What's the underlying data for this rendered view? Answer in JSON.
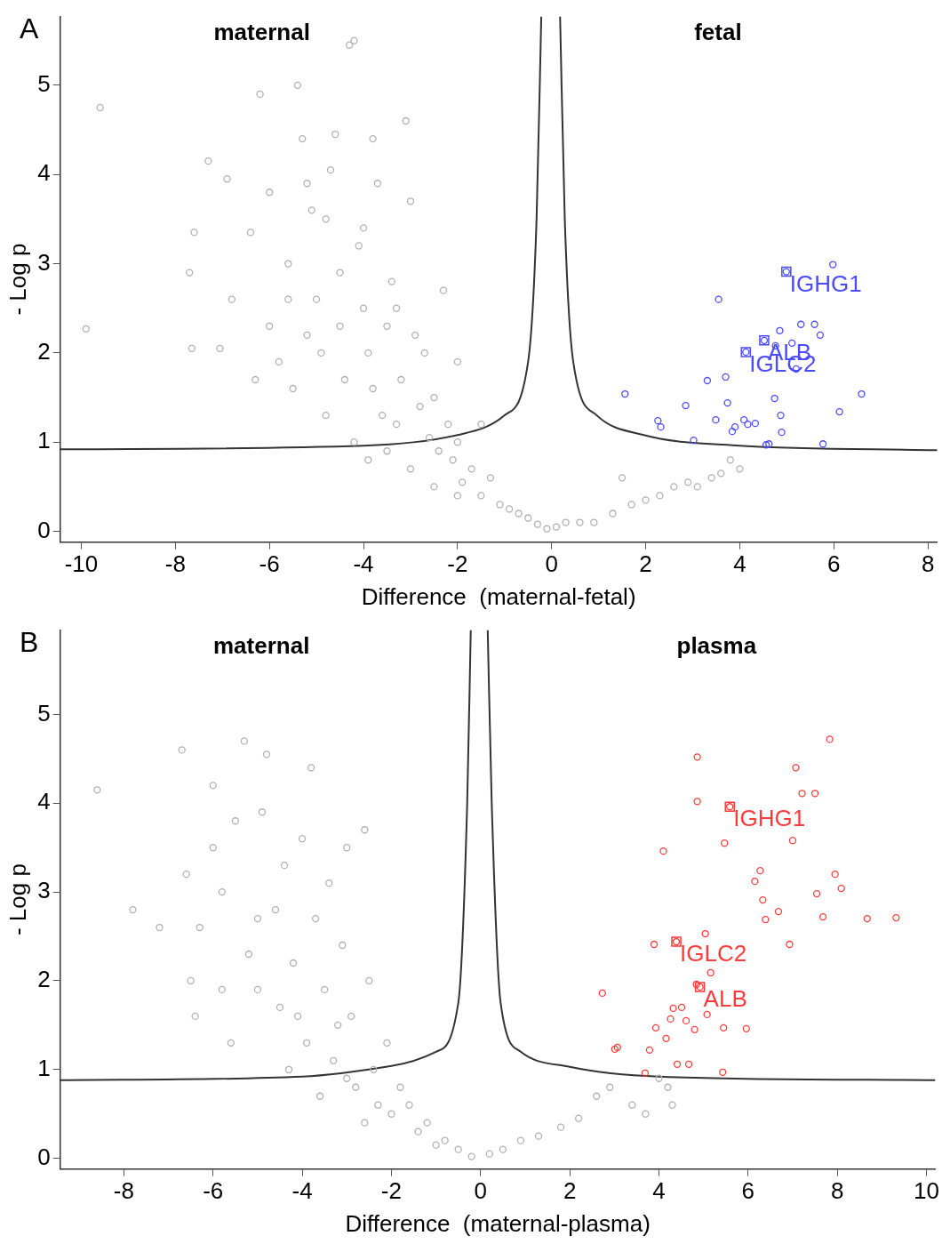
{
  "chart_data": [
    {
      "type": "scatter",
      "title": "A",
      "xlabel": "Difference  (maternal-fetal)",
      "ylabel": "- Log p",
      "xlim": [
        -10.45,
        8.2
      ],
      "ylim": [
        -0.12,
        5.77
      ],
      "xticks": [
        -10,
        -8,
        -6,
        -4,
        -2,
        0,
        2,
        4,
        6,
        8
      ],
      "yticks": [
        0,
        1,
        2,
        3,
        4,
        5
      ],
      "grid": false,
      "legend": false,
      "annotations": [
        "maternal",
        "fetal",
        {
          "text": "IGHG1",
          "x": 4.99,
          "y": 2.91
        },
        {
          "text": "ALB",
          "x": 4.52,
          "y": 2.14
        },
        {
          "text": "IGLC2",
          "x": 4.13,
          "y": 2.01
        }
      ],
      "series": [
        {
          "type": "scatter",
          "marker": "circle",
          "color": "#b0b0b0",
          "x": [
            -9.6,
            -9.9,
            -7.7,
            -7.6,
            -7.65,
            -7.3,
            -7.05,
            -6.9,
            -6.8,
            -6.4,
            -6.2,
            -6.0,
            -6.0,
            -5.8,
            -5.6,
            -5.6,
            -5.4,
            -5.3,
            -5.2,
            -5.1,
            -5.0,
            -4.9,
            -4.8,
            -4.7,
            -4.6,
            -4.5,
            -4.4,
            -4.3,
            -4.2,
            -4.1,
            -4.0,
            -3.9,
            -3.8,
            -3.8,
            -3.7,
            -3.6,
            -3.5,
            -3.4,
            -3.3,
            -3.2,
            -3.1,
            -3.0,
            -2.9,
            -2.8,
            -2.7,
            -2.6,
            -2.5,
            -2.4,
            -2.3,
            -2.2,
            -2.1,
            -2.0,
            -1.9,
            -1.7,
            -1.5,
            -1.3,
            -1.1,
            -0.9,
            -0.7,
            -0.5,
            -0.3,
            -0.1,
            0.1,
            0.3,
            0.6,
            0.9,
            1.3,
            1.5,
            1.7,
            2.0,
            2.3,
            2.6,
            2.9,
            3.1,
            3.4,
            3.6,
            3.8,
            4.0,
            -4.8,
            -4.2,
            -3.9,
            -3.5,
            -3.0,
            -2.5,
            -2.0,
            -5.5,
            -6.3,
            -4.5,
            -3.3,
            -2.0,
            -1.5,
            -4.0,
            -5.2
          ],
          "values": [
            4.75,
            2.27,
            2.9,
            3.35,
            2.05,
            4.15,
            2.05,
            3.95,
            2.6,
            3.35,
            4.9,
            2.3,
            3.8,
            1.9,
            3.0,
            2.6,
            5.0,
            4.4,
            2.2,
            3.6,
            2.6,
            2.0,
            3.5,
            4.05,
            4.45,
            2.9,
            1.7,
            5.45,
            5.5,
            3.2,
            2.5,
            2.0,
            1.6,
            4.4,
            3.9,
            1.3,
            2.3,
            2.8,
            1.2,
            1.7,
            4.6,
            3.7,
            2.2,
            1.4,
            2.0,
            1.05,
            1.5,
            0.9,
            2.7,
            1.2,
            0.8,
            1.0,
            0.55,
            0.7,
            0.4,
            0.6,
            0.3,
            0.25,
            0.2,
            0.15,
            0.08,
            0.03,
            0.05,
            0.1,
            0.1,
            0.1,
            0.2,
            0.6,
            0.3,
            0.35,
            0.4,
            0.5,
            0.55,
            0.5,
            0.6,
            0.65,
            0.8,
            0.7,
            1.3,
            1.0,
            0.8,
            0.9,
            0.7,
            0.5,
            0.4,
            1.6,
            1.7,
            2.3,
            2.5,
            1.9,
            1.2,
            3.4,
            3.9
          ]
        },
        {
          "type": "scatter",
          "marker": "circle",
          "color": "#4a4aff",
          "x": [
            1.56,
            2.26,
            2.32,
            2.85,
            3.02,
            3.31,
            3.49,
            3.55,
            3.7,
            3.74,
            3.84,
            3.9,
            4.09,
            4.13,
            4.17,
            4.33,
            4.52,
            4.56,
            4.62,
            4.74,
            4.76,
            4.85,
            4.87,
            4.89,
            4.99,
            5.11,
            5.2,
            5.3,
            5.59,
            5.71,
            5.77,
            5.98,
            6.12,
            6.59
          ],
          "values": [
            1.54,
            1.24,
            1.17,
            1.41,
            1.02,
            1.69,
            1.25,
            2.6,
            1.73,
            1.44,
            1.12,
            1.17,
            1.25,
            2.01,
            1.2,
            1.21,
            2.14,
            0.97,
            0.98,
            1.49,
            2.08,
            2.25,
            1.3,
            1.11,
            2.91,
            2.11,
            1.82,
            2.32,
            2.32,
            2.2,
            0.98,
            2.99,
            1.34,
            1.54
          ]
        },
        {
          "type": "line",
          "marker": "none",
          "color": "#333333",
          "x": [
            -10.45,
            -4,
            -2,
            -1,
            -0.5,
            -0.32,
            -0.22
          ],
          "values": [
            0.92,
            0.96,
            1.08,
            1.3,
            1.9,
            3.5,
            5.77
          ]
        },
        {
          "type": "line",
          "marker": "none",
          "color": "#333333",
          "x": [
            0.18,
            0.28,
            0.46,
            0.96,
            1.96,
            4,
            8.2
          ],
          "values": [
            5.77,
            3.5,
            1.9,
            1.3,
            1.08,
            0.96,
            0.91
          ]
        }
      ]
    },
    {
      "type": "scatter",
      "title": "B",
      "xlabel": "Difference  (maternal-plasma)",
      "ylabel": "- Log p",
      "xlim": [
        -9.43,
        10.2
      ],
      "ylim": [
        -0.12,
        5.95
      ],
      "xticks": [
        -8,
        -6,
        -4,
        -2,
        0,
        2,
        4,
        6,
        8,
        10
      ],
      "yticks": [
        0,
        1,
        2,
        3,
        4,
        5
      ],
      "grid": false,
      "legend": false,
      "annotations": [
        "maternal",
        "plasma",
        {
          "text": "IGHG1",
          "x": 5.59,
          "y": 3.96
        },
        {
          "text": "IGLC2",
          "x": 4.39,
          "y": 2.44
        },
        {
          "text": "ALB",
          "x": 4.92,
          "y": 1.93
        }
      ],
      "series": [
        {
          "type": "scatter",
          "marker": "circle",
          "color": "#b0b0b0",
          "x": [
            -8.6,
            -7.8,
            -7.2,
            -6.7,
            -6.6,
            -6.5,
            -6.4,
            -6.3,
            -6.0,
            -5.8,
            -5.6,
            -5.5,
            -5.3,
            -5.2,
            -5.0,
            -4.9,
            -4.8,
            -4.6,
            -4.5,
            -4.4,
            -4.2,
            -4.0,
            -3.9,
            -3.8,
            -3.7,
            -3.5,
            -3.4,
            -3.3,
            -3.1,
            -3.0,
            -2.9,
            -2.8,
            -2.6,
            -2.5,
            -2.4,
            -2.3,
            -2.1,
            -2.0,
            -1.8,
            -1.6,
            -1.4,
            -1.2,
            -1.0,
            -0.8,
            -0.5,
            -0.2,
            0.2,
            0.5,
            0.9,
            1.3,
            1.8,
            2.2,
            2.6,
            2.9,
            3.4,
            3.7,
            4.2,
            4.3,
            4.0,
            -4.3,
            -3.6,
            -3.0,
            -2.6,
            -5.8,
            -5.0,
            -4.1,
            -3.2,
            -6.0
          ],
          "values": [
            4.15,
            2.8,
            2.6,
            4.6,
            3.2,
            2.0,
            1.6,
            2.6,
            4.2,
            3.0,
            1.3,
            3.8,
            4.7,
            2.3,
            1.9,
            3.9,
            4.55,
            2.8,
            1.7,
            3.3,
            2.2,
            3.6,
            1.3,
            4.4,
            2.7,
            1.9,
            3.1,
            1.1,
            2.4,
            3.5,
            1.6,
            0.8,
            3.7,
            2.0,
            1.0,
            0.6,
            1.3,
            0.5,
            0.8,
            0.6,
            0.3,
            0.4,
            0.15,
            0.2,
            0.1,
            0.02,
            0.05,
            0.1,
            0.2,
            0.25,
            0.35,
            0.45,
            0.7,
            0.8,
            0.6,
            0.5,
            0.8,
            0.6,
            0.9,
            1.0,
            0.7,
            0.9,
            0.4,
            1.9,
            2.7,
            1.6,
            1.5,
            3.5
          ]
        },
        {
          "type": "scatter",
          "marker": "circle",
          "color": "#ff3b3b",
          "x": [
            2.73,
            3.01,
            3.07,
            3.69,
            3.79,
            3.89,
            3.93,
            4.1,
            4.16,
            4.26,
            4.32,
            4.39,
            4.41,
            4.51,
            4.61,
            4.67,
            4.8,
            4.84,
            4.86,
            4.86,
            4.92,
            5.04,
            5.08,
            5.16,
            5.43,
            5.45,
            5.47,
            5.59,
            5.96,
            6.15,
            6.27,
            6.33,
            6.39,
            6.68,
            6.93,
            7.0,
            7.07,
            7.21,
            7.5,
            7.54,
            7.68,
            7.83,
            7.95,
            8.09,
            8.67,
            9.32
          ],
          "values": [
            1.86,
            1.23,
            1.25,
            0.96,
            1.22,
            2.41,
            1.47,
            3.46,
            1.35,
            1.57,
            1.69,
            2.44,
            1.06,
            1.7,
            1.55,
            1.06,
            1.45,
            1.96,
            4.02,
            4.52,
            1.93,
            2.53,
            1.62,
            2.09,
            0.97,
            1.47,
            3.55,
            3.96,
            1.46,
            3.12,
            3.24,
            2.91,
            2.69,
            2.78,
            2.41,
            3.58,
            4.4,
            4.11,
            4.11,
            2.98,
            2.72,
            4.72,
            3.2,
            3.04,
            2.7,
            2.71
          ]
        },
        {
          "type": "line",
          "marker": "none",
          "color": "#333333",
          "x": [
            -9.43,
            -4,
            -2,
            -1,
            -0.5,
            -0.3,
            -0.22
          ],
          "values": [
            0.88,
            0.92,
            1.04,
            1.2,
            1.75,
            4.0,
            5.95
          ]
        },
        {
          "type": "line",
          "marker": "none",
          "color": "#333333",
          "x": [
            0.16,
            0.25,
            0.45,
            0.9,
            2,
            4,
            10.2
          ],
          "values": [
            5.95,
            4.0,
            1.75,
            1.2,
            1.03,
            0.92,
            0.88
          ]
        }
      ]
    }
  ]
}
